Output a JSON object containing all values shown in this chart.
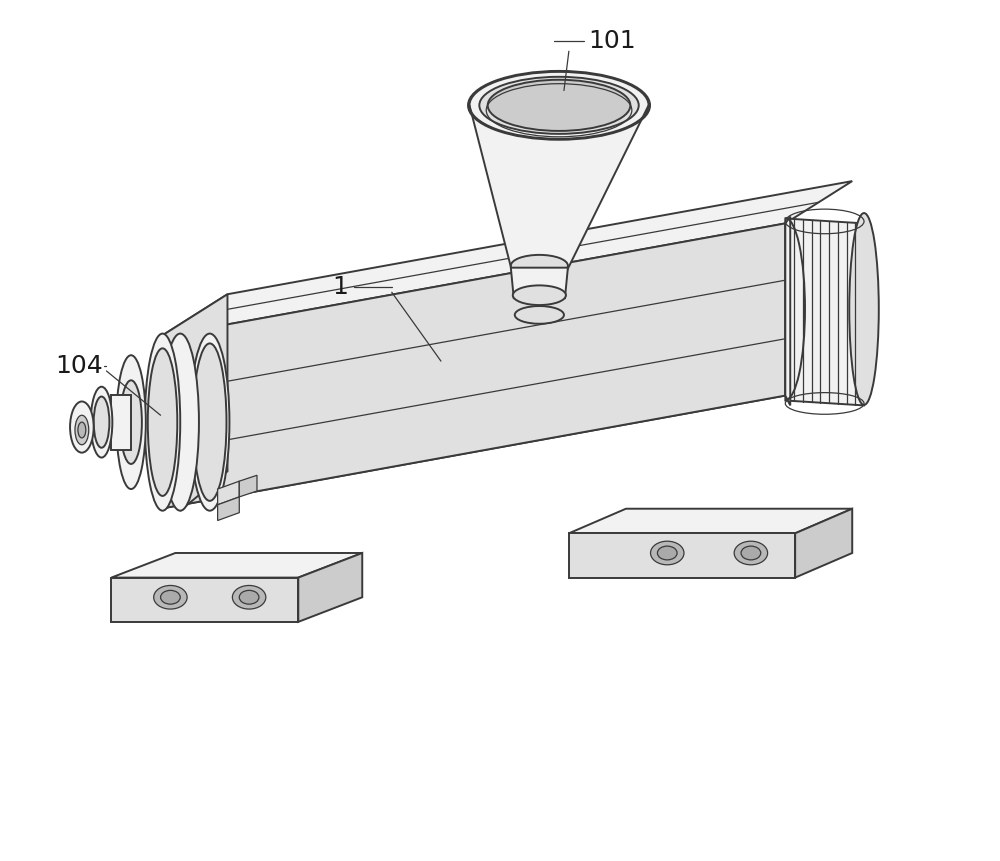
{
  "bg_color": "#ffffff",
  "lc": "#3a3a3a",
  "lw": 1.4,
  "lw_thin": 0.9,
  "fc_light": "#f2f2f2",
  "fc_mid": "#e0e0e0",
  "fc_dark": "#cccccc",
  "fc_darkest": "#b8b8b8",
  "figsize": [
    10.0,
    8.61
  ],
  "label_101": "101",
  "label_1": "1",
  "label_104": "104"
}
